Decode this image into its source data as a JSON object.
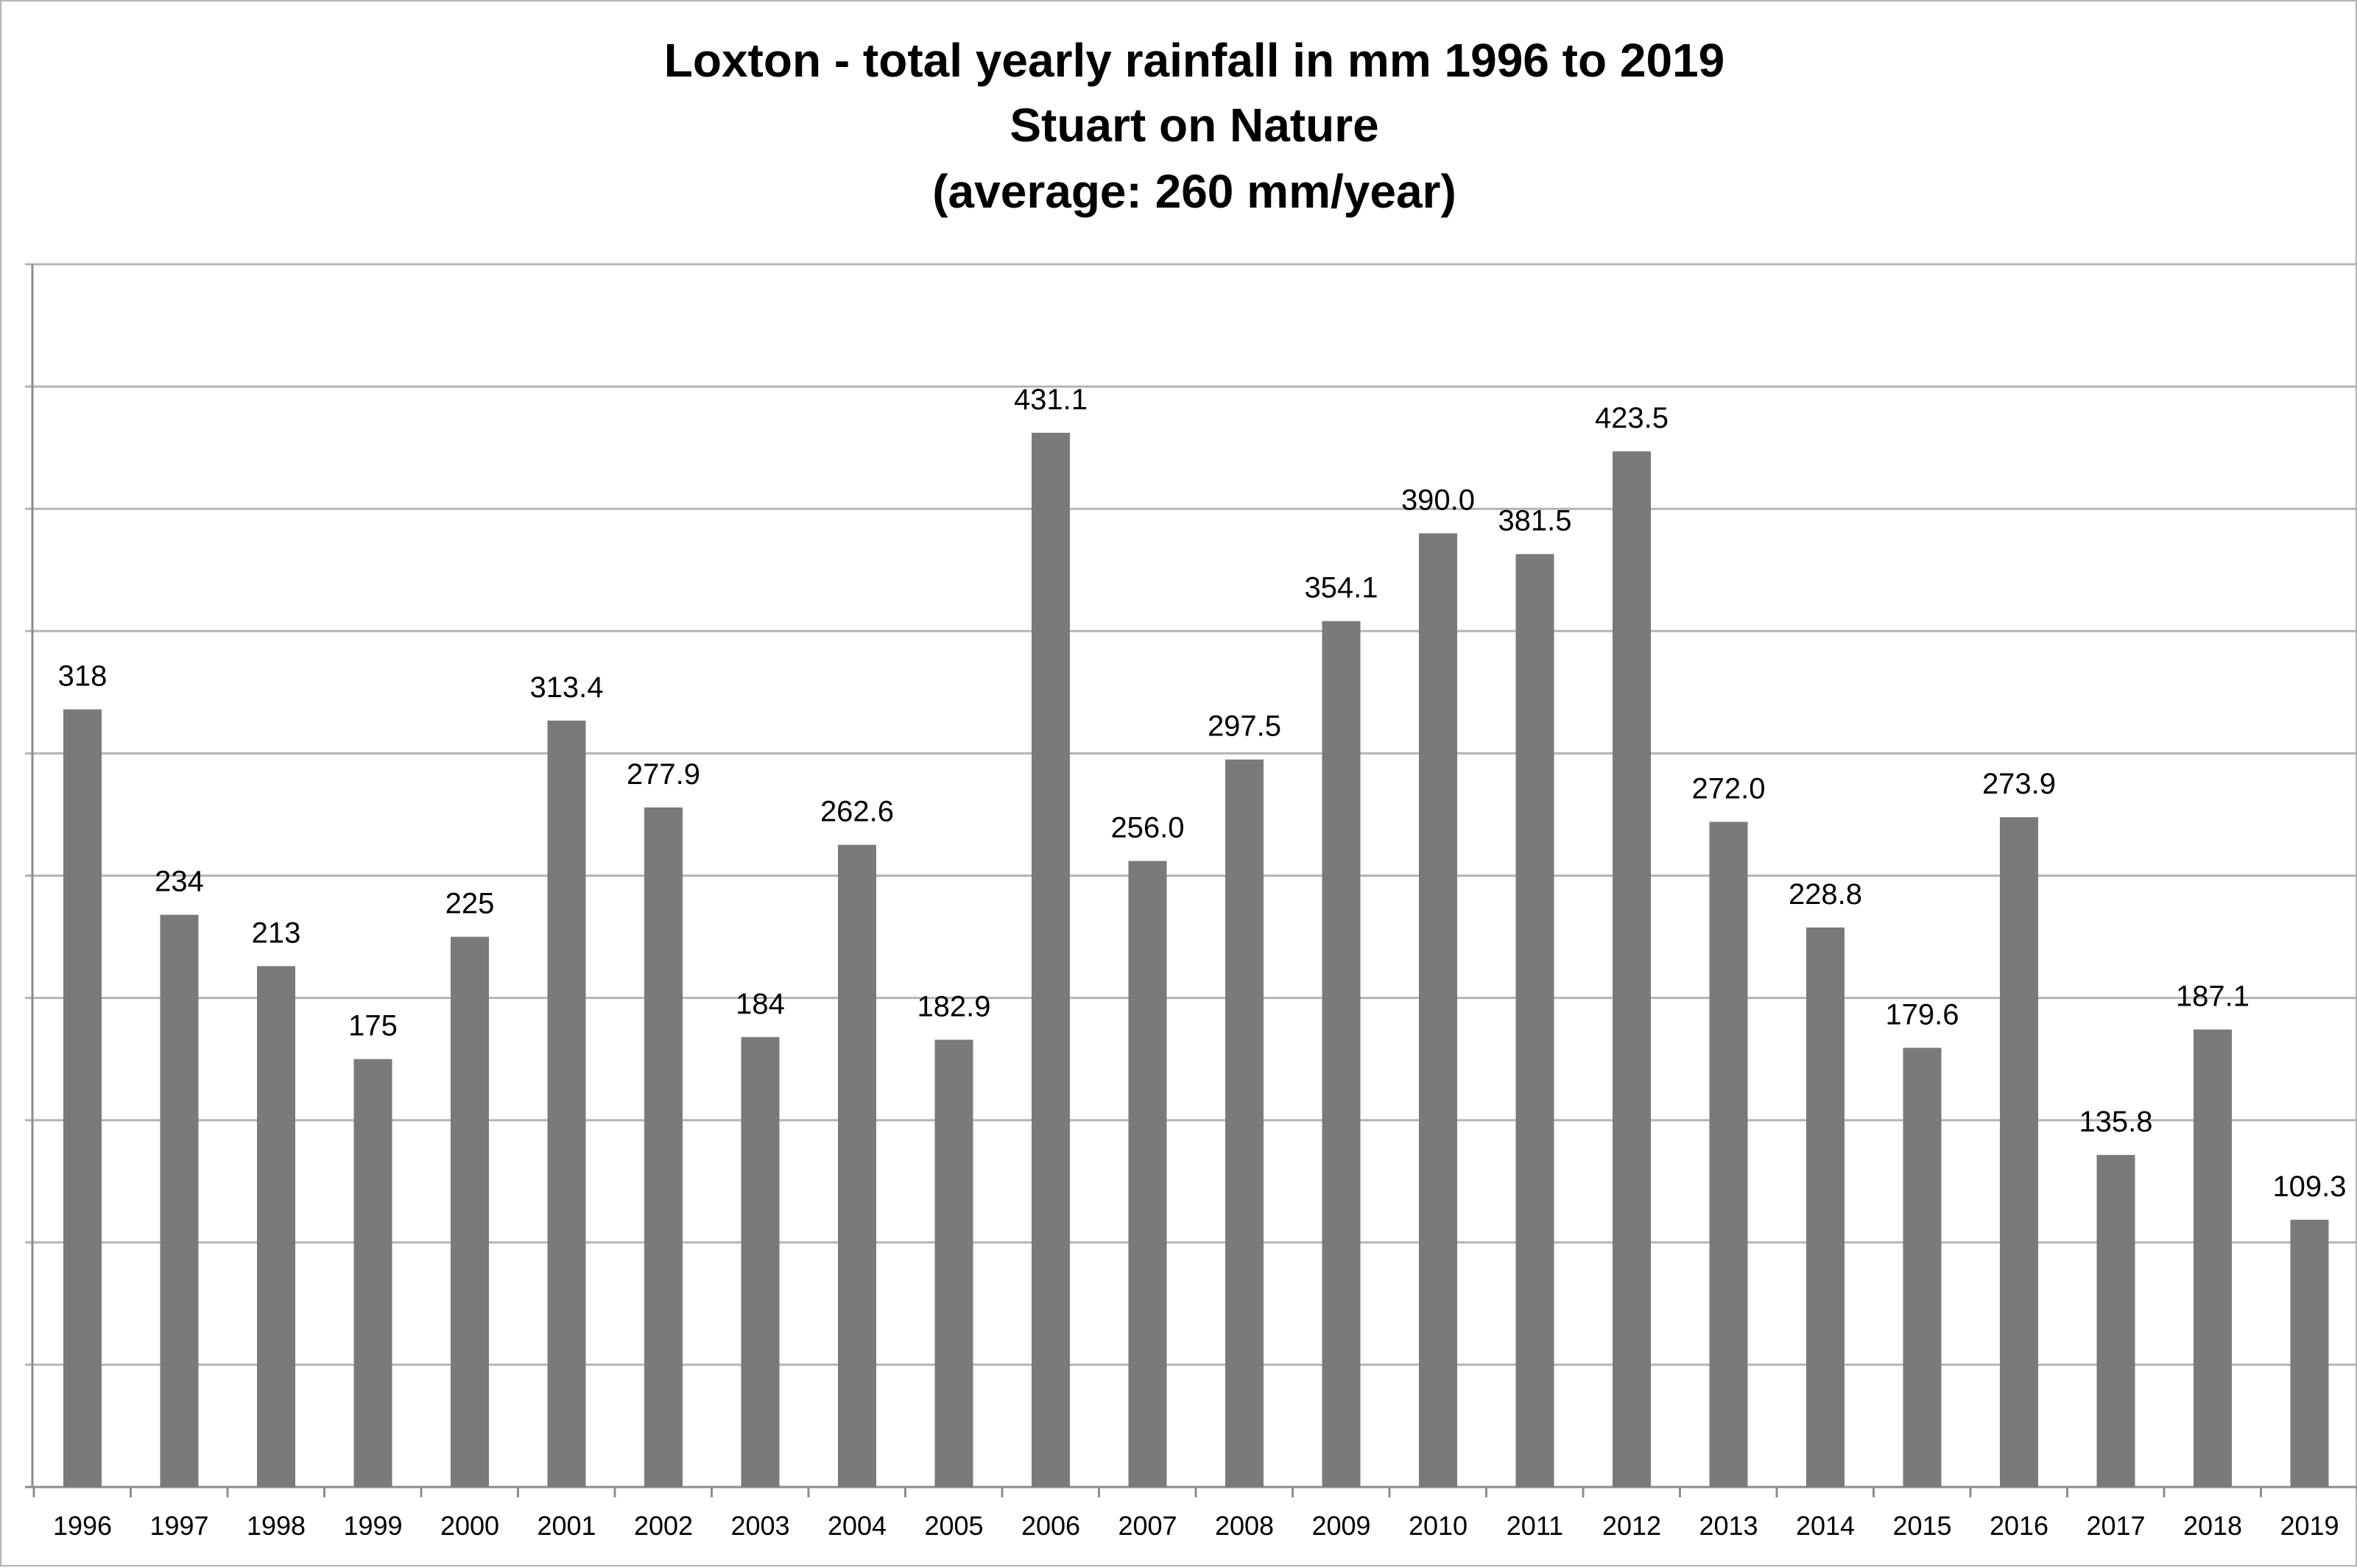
{
  "chart_data": {
    "type": "bar",
    "title": [
      "Loxton - total yearly rainfall in mm 1996 to 2019",
      "Stuart on Nature",
      "(average: 260 mm/year)"
    ],
    "xlabel": "",
    "ylabel": "",
    "ylim": [
      0,
      500
    ],
    "y_gridline_step": 50,
    "y_tick_labels_shown": false,
    "grid": true,
    "legend": "none",
    "bar_color": "#7a7a7a",
    "gridline_color": "#b4b4b4",
    "categories": [
      "1996",
      "1997",
      "1998",
      "1999",
      "2000",
      "2001",
      "2002",
      "2003",
      "2004",
      "2005",
      "2006",
      "2007",
      "2008",
      "2009",
      "2010",
      "2011",
      "2012",
      "2013",
      "2014",
      "2015",
      "2016",
      "2017",
      "2018",
      "2019"
    ],
    "values": [
      318,
      234,
      213,
      175,
      225,
      313.4,
      277.9,
      184,
      262.6,
      182.9,
      431.1,
      256.0,
      297.5,
      354.1,
      390.0,
      381.5,
      423.5,
      272.0,
      228.8,
      179.6,
      273.9,
      135.8,
      187.1,
      109.3
    ],
    "data_labels": [
      "318",
      "234",
      "213",
      "175",
      "225",
      "313.4",
      "277.9",
      "184",
      "262.6",
      "182.9",
      "431.1",
      "256.0",
      "297.5",
      "354.1",
      "390.0",
      "381.5",
      "423.5",
      "272.0",
      "228.8",
      "179.6",
      "273.9",
      "135.8",
      "187.1",
      "109.3"
    ]
  }
}
